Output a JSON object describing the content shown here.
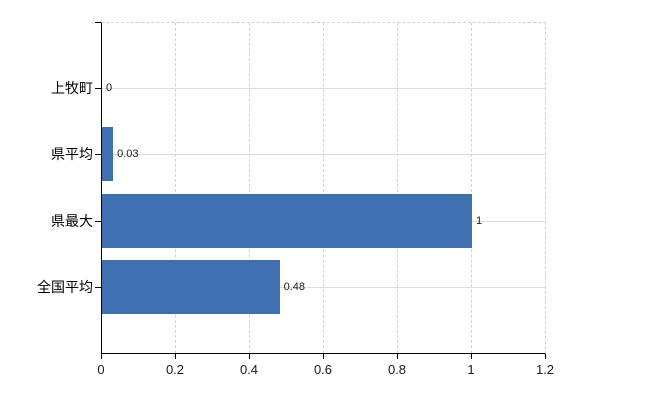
{
  "chart_data": {
    "type": "bar",
    "orientation": "horizontal",
    "title": "",
    "xlabel": "",
    "ylabel": "",
    "categories": [
      "上牧町",
      "県平均",
      "県最大",
      "全国平均"
    ],
    "values": [
      0,
      0.03,
      1,
      0.48
    ],
    "value_labels": [
      "0",
      "0.03",
      "1",
      "0.48"
    ],
    "xlim": [
      0,
      1.2
    ],
    "x_ticks": [
      0,
      0.2,
      0.4,
      0.6,
      0.8,
      1,
      1.2
    ],
    "x_tick_labels": [
      "0",
      "0.2",
      "0.4",
      "0.6",
      "0.8",
      "1",
      "1.2"
    ],
    "grid": "horizontal solid at category centers, vertical dashed at ticks",
    "legend_position": "none",
    "colors": {
      "bar": "#3e6fae",
      "axis": "#000000",
      "horizontal_grid": "#dadfda",
      "vertical_grid": "#d6d2d6",
      "plot_border_dashed": "#d5cfd2",
      "text": "#1a1a1a"
    }
  }
}
